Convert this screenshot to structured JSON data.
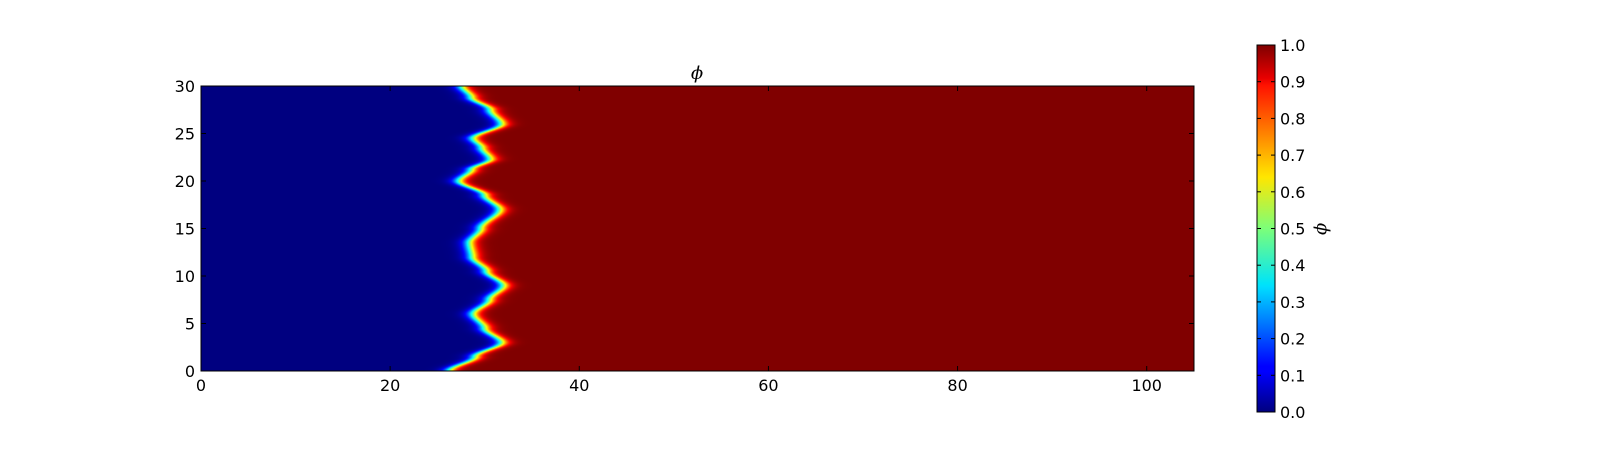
{
  "chart_data": {
    "type": "heatmap",
    "title": "ϕ",
    "xlim": [
      0,
      105
    ],
    "ylim": [
      0,
      30
    ],
    "xticks": [
      0,
      20,
      40,
      60,
      80,
      100
    ],
    "yticks": [
      0,
      5,
      10,
      15,
      20,
      25,
      30
    ],
    "xtick_labels": [
      "0",
      "20",
      "40",
      "60",
      "80",
      "100"
    ],
    "ytick_labels": [
      "0",
      "5",
      "10",
      "15",
      "20",
      "25",
      "30"
    ],
    "colormap": "jet",
    "field": {
      "description_of_values": "phi, 0 on the left region, 1 on the right region",
      "low_value": 0.0,
      "high_value": 1.0,
      "interface_x_at_y": [
        {
          "y": 0.0,
          "x": 26.3
        },
        {
          "y": 1.5,
          "x": 29.0
        },
        {
          "y": 3.0,
          "x": 31.8
        },
        {
          "y": 4.5,
          "x": 30.0
        },
        {
          "y": 6.0,
          "x": 28.8
        },
        {
          "y": 7.5,
          "x": 30.5
        },
        {
          "y": 9.0,
          "x": 32.0
        },
        {
          "y": 10.5,
          "x": 30.2
        },
        {
          "y": 12.0,
          "x": 28.7
        },
        {
          "y": 13.5,
          "x": 28.4
        },
        {
          "y": 15.0,
          "x": 29.6
        },
        {
          "y": 17.0,
          "x": 31.6
        },
        {
          "y": 18.5,
          "x": 30.0
        },
        {
          "y": 20.0,
          "x": 27.3
        },
        {
          "y": 21.2,
          "x": 28.6
        },
        {
          "y": 22.3,
          "x": 30.6
        },
        {
          "y": 23.5,
          "x": 29.7
        },
        {
          "y": 24.5,
          "x": 28.8
        },
        {
          "y": 26.0,
          "x": 31.8
        },
        {
          "y": 27.5,
          "x": 30.6
        },
        {
          "y": 28.8,
          "x": 28.6
        },
        {
          "y": 30.0,
          "x": 27.6
        }
      ],
      "interface_width": 0.9,
      "tail_length": 5.0,
      "tail_level": 0.55
    },
    "colorbar": {
      "label": "ϕ",
      "min": 0.0,
      "max": 1.0,
      "ticks": [
        0.0,
        0.1,
        0.2,
        0.3,
        0.4,
        0.5,
        0.6,
        0.7,
        0.8,
        0.9,
        1.0
      ],
      "tick_labels": [
        "0.0",
        "0.1",
        "0.2",
        "0.3",
        "0.4",
        "0.5",
        "0.6",
        "0.7",
        "0.8",
        "0.9",
        "1.0"
      ]
    }
  }
}
